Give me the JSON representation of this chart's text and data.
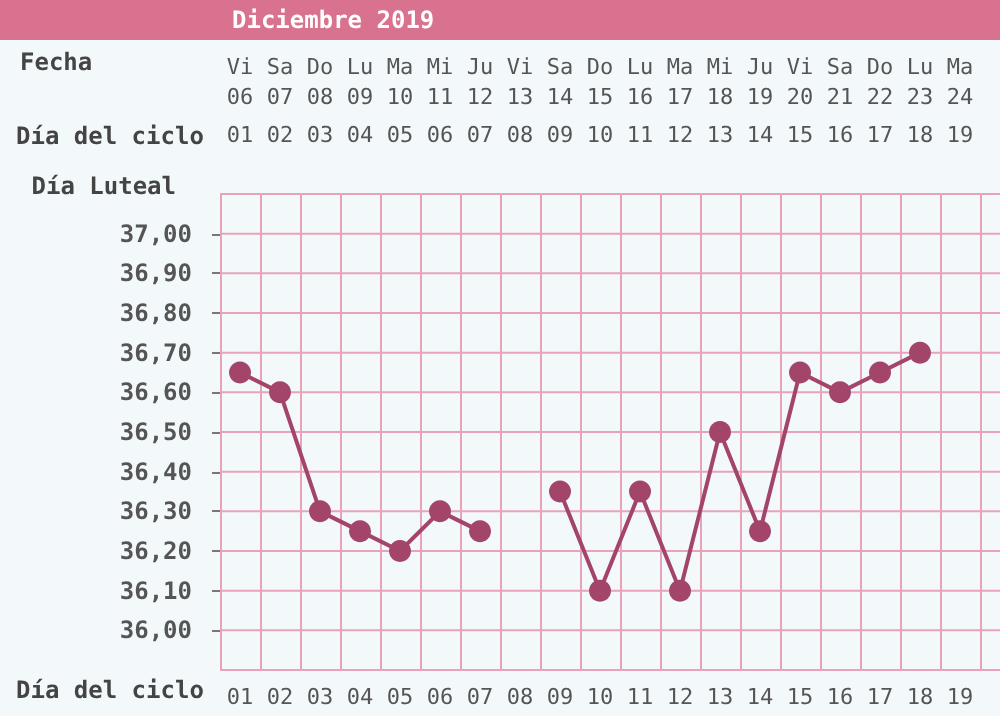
{
  "chart_data": {
    "type": "line",
    "title": "Diciembre 2019",
    "xlabel": "Día del ciclo",
    "ylabel": "Día Luteal",
    "categories": [
      "01",
      "02",
      "03",
      "04",
      "05",
      "06",
      "07",
      "08",
      "09",
      "10",
      "11",
      "12",
      "13",
      "14",
      "15",
      "16",
      "17",
      "18",
      "19"
    ],
    "values": [
      36.65,
      36.6,
      36.3,
      36.25,
      36.2,
      36.3,
      36.25,
      null,
      36.35,
      36.1,
      36.35,
      36.1,
      36.5,
      36.25,
      36.65,
      36.6,
      36.65,
      36.7,
      null
    ],
    "color": "#a3456b",
    "marker": "circle",
    "grid": true,
    "ylim": [
      35.9,
      37.1
    ],
    "yticks": [
      {
        "value": 36,
        "label": "36,00"
      },
      {
        "value": 36.1,
        "label": "36,10"
      },
      {
        "value": 36.2,
        "label": "36,20"
      },
      {
        "value": 36.3,
        "label": "36,30"
      },
      {
        "value": 36.4,
        "label": "36,40"
      },
      {
        "value": 36.5,
        "label": "36,50"
      },
      {
        "value": 36.6,
        "label": "36,60"
      },
      {
        "value": 36.7,
        "label": "36,70"
      },
      {
        "value": 36.8,
        "label": "36,80"
      },
      {
        "value": 36.9,
        "label": "36,90"
      },
      {
        "value": 37,
        "label": "37,00"
      }
    ],
    "annotations": [
      "Fecha",
      "Vi\n06",
      "Sa\n07",
      "Do\n08",
      "Lu\n09",
      "Ma\n10",
      "Mi\n11",
      "Ju\n12",
      "Vi\n13",
      "Sa\n14",
      "Do\n15",
      "Lu\n16",
      "Ma\n17",
      "Mi\n18",
      "Ju\n19",
      "Vi\n20",
      "Sa\n21",
      "Do\n22",
      "Lu\n23",
      "Ma\n24"
    ]
  }
}
